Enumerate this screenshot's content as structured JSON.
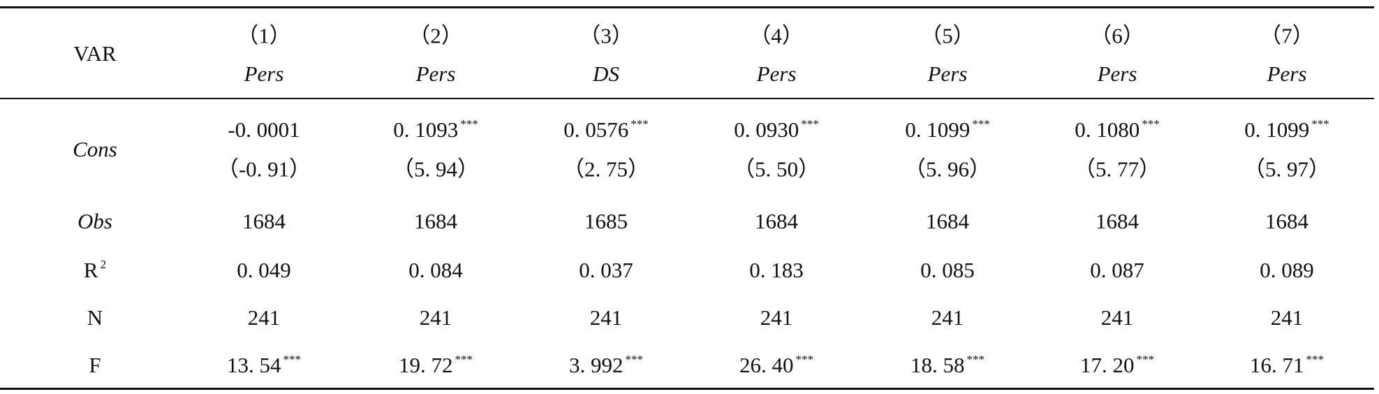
{
  "header": {
    "label": "VAR",
    "columns": [
      {
        "number": "（1）",
        "dependent": "Pers"
      },
      {
        "number": "（2）",
        "dependent": "Pers"
      },
      {
        "number": "（3）",
        "dependent": "DS"
      },
      {
        "number": "（4）",
        "dependent": "Pers"
      },
      {
        "number": "（5）",
        "dependent": "Pers"
      },
      {
        "number": "（6）",
        "dependent": "Pers"
      },
      {
        "number": "（7）",
        "dependent": "Pers"
      }
    ]
  },
  "rows": [
    {
      "label": "Cons",
      "cells": [
        {
          "value": "-0. 0001"
        },
        {
          "value": "0. 1093",
          "stars": "***"
        },
        {
          "value": "0. 0576",
          "stars": "***"
        },
        {
          "value": "0. 0930",
          "stars": "***"
        },
        {
          "value": "0. 1099",
          "stars": "***"
        },
        {
          "value": "0. 1080",
          "stars": "***"
        },
        {
          "value": "0. 1099",
          "stars": "***"
        }
      ],
      "t_stats": [
        "（-0. 91）",
        "（5. 94）",
        "（2. 75）",
        "（5. 50）",
        "（5. 96）",
        "（5. 77）",
        "（5. 97）"
      ]
    },
    {
      "label": "Obs",
      "cells": [
        {
          "value": "1684"
        },
        {
          "value": "1684"
        },
        {
          "value": "1685"
        },
        {
          "value": "1684"
        },
        {
          "value": "1684"
        },
        {
          "value": "1684"
        },
        {
          "value": "1684"
        }
      ]
    },
    {
      "label": "R",
      "label_sup": "2",
      "cells": [
        {
          "value": "0. 049"
        },
        {
          "value": "0. 084"
        },
        {
          "value": "0. 037"
        },
        {
          "value": "0. 183"
        },
        {
          "value": "0. 085"
        },
        {
          "value": "0. 087"
        },
        {
          "value": "0. 089"
        }
      ]
    },
    {
      "label": "N",
      "cells": [
        {
          "value": "241"
        },
        {
          "value": "241"
        },
        {
          "value": "241"
        },
        {
          "value": "241"
        },
        {
          "value": "241"
        },
        {
          "value": "241"
        },
        {
          "value": "241"
        }
      ]
    },
    {
      "label": "F",
      "cells": [
        {
          "value": "13. 54",
          "stars": "***"
        },
        {
          "value": "19. 72",
          "stars": "***"
        },
        {
          "value": "3. 992",
          "stars": "***"
        },
        {
          "value": "26. 40",
          "stars": "***"
        },
        {
          "value": "18. 58",
          "stars": "***"
        },
        {
          "value": "17. 20",
          "stars": "***"
        },
        {
          "value": "16. 71",
          "stars": "***"
        }
      ]
    }
  ]
}
